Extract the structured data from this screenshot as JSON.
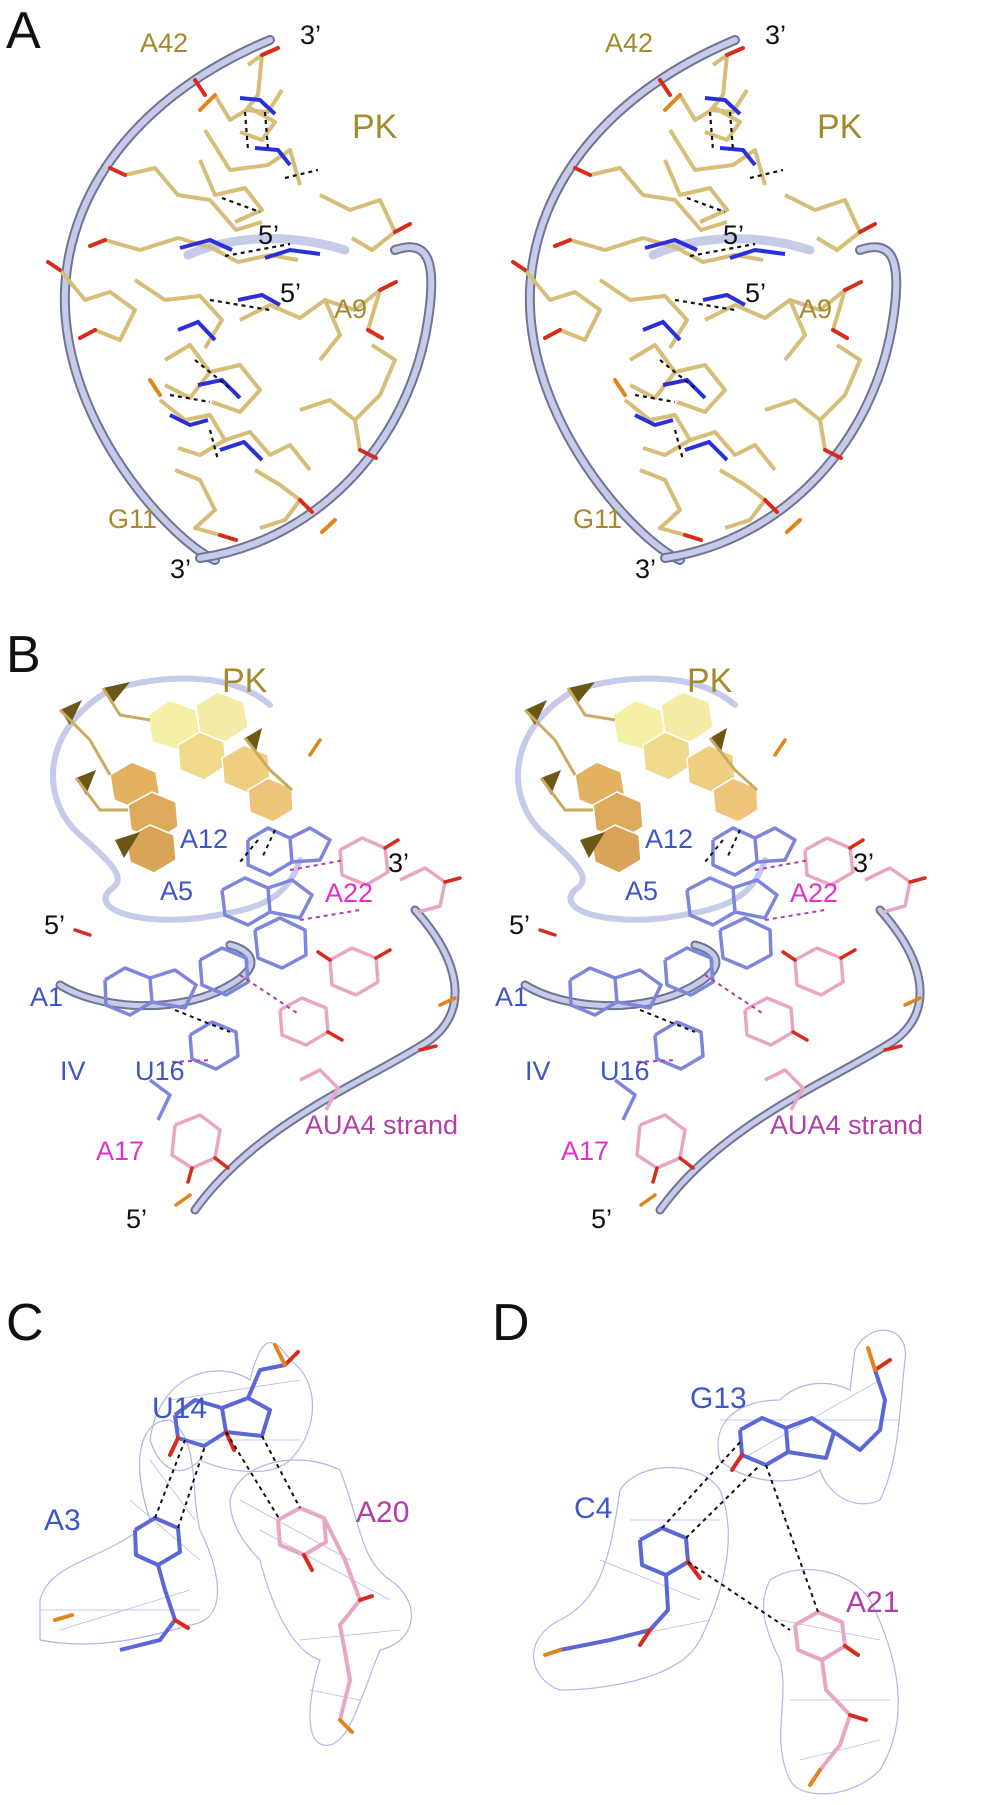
{
  "colors": {
    "gold": "#a48a2c",
    "stick_gold": "#d6bd78",
    "blue": "#3e55c8",
    "stick_blue": "#7d86dc",
    "magenta": "#e231c9",
    "purple": "#b03fa8",
    "pink_stick": "#e9a6c4",
    "nitrogen": "#2a2fd9",
    "oxygen": "#d72b1b",
    "phosphate": "#e2841c",
    "backbone": "#c2c8e6",
    "mesh": "#8e96e0",
    "hbond": "#111111"
  },
  "panels": {
    "a": {
      "letter": "A",
      "left": {
        "a42": "A42",
        "pk": "PK",
        "a9": "A9",
        "g11": "G11",
        "three_prime_top": "3’",
        "five_prime_1": "5’",
        "five_prime_2": "5’",
        "three_prime_bottom": "3’"
      },
      "right": {
        "a42": "A42",
        "pk": "PK",
        "a9": "A9",
        "g11": "G11",
        "three_prime_top": "3’",
        "five_prime_1": "5’",
        "five_prime_2": "5’",
        "three_prime_bottom": "3’"
      }
    },
    "b": {
      "letter": "B",
      "left": {
        "pk": "PK",
        "a12": "A12",
        "a5": "A5",
        "a22": "A22",
        "three_prime": "3’",
        "five_prime_top": "5’",
        "a1": "A1",
        "iv": "IV",
        "u16": "U16",
        "aua4_strand": "AUA4 strand",
        "a17": "A17",
        "five_prime_bottom": "5’"
      },
      "right": {
        "pk": "PK",
        "a12": "A12",
        "a5": "A5",
        "a22": "A22",
        "three_prime": "3’",
        "five_prime_top": "5’",
        "a1": "A1",
        "iv": "IV",
        "u16": "U16",
        "aua4_strand": "AUA4 strand",
        "a17": "A17",
        "five_prime_bottom": "5’"
      }
    },
    "c": {
      "letter": "C",
      "u14": "U14",
      "a3": "A3",
      "a20": "A20"
    },
    "d": {
      "letter": "D",
      "g13": "G13",
      "c4": "C4",
      "a21": "A21"
    }
  }
}
